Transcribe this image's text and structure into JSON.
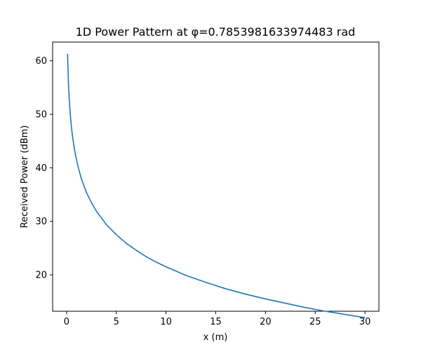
{
  "chart_data": {
    "type": "line",
    "title": "1D Power Pattern at φ=0.7853981633974483 rad",
    "xlabel": "x (m)",
    "ylabel": "Received Power (dBm)",
    "xlim": [
      -1.4,
      31.4
    ],
    "ylim": [
      13.2,
      63.5
    ],
    "xticks": [
      0,
      5,
      10,
      15,
      20,
      25,
      30
    ],
    "yticks": [
      20,
      30,
      40,
      50,
      60
    ],
    "grid": false,
    "legend": "none",
    "series": [
      {
        "color": "#1f77b4",
        "x": [
          0.1,
          0.2,
          0.3,
          0.4,
          0.5,
          0.6,
          0.8,
          1.0,
          1.2,
          1.5,
          2.0,
          2.5,
          3.0,
          4.0,
          5.0,
          6.0,
          7.0,
          8.0,
          9.0,
          10.0,
          12.0,
          14.0,
          16.0,
          18.0,
          20.0,
          22.0,
          24.0,
          26.0,
          28.0,
          30.0
        ],
        "y": [
          61.3,
          55.3,
          51.8,
          49.3,
          47.3,
          45.7,
          43.2,
          41.3,
          39.7,
          37.7,
          35.3,
          33.3,
          31.7,
          29.2,
          27.3,
          25.7,
          24.4,
          23.2,
          22.2,
          21.3,
          19.7,
          18.4,
          17.2,
          16.2,
          15.3,
          14.4,
          13.7,
          12.9,
          12.3,
          11.7
        ],
        "y_display": [
          61.3,
          55.3,
          51.9,
          49.4,
          47.5,
          45.9,
          43.4,
          41.5,
          39.9,
          37.9,
          35.4,
          33.5,
          31.9,
          29.4,
          27.5,
          25.9,
          24.6,
          23.4,
          22.4,
          21.5,
          19.9,
          18.6,
          17.4,
          16.4,
          15.5,
          14.7,
          13.9,
          13.2,
          12.6,
          12.0
        ]
      }
    ]
  }
}
